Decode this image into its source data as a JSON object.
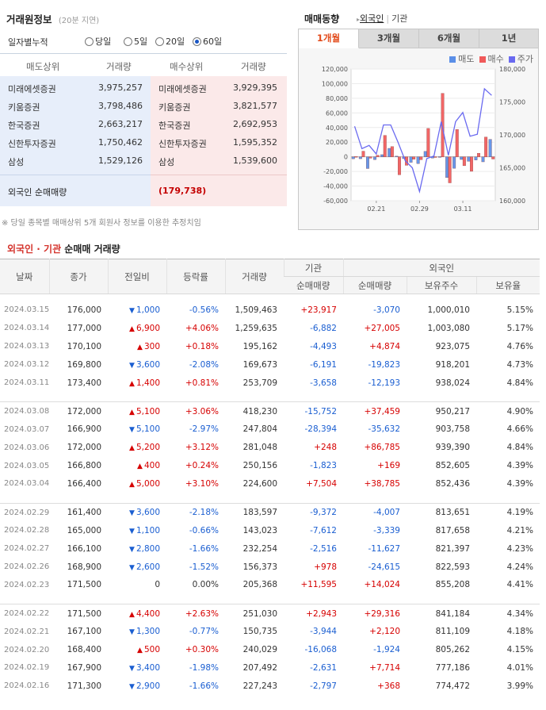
{
  "trading_info": {
    "title": "거래원정보",
    "subtitle": "(20분 지연)",
    "period_label": "일자별누적",
    "period_options": [
      "당일",
      "5일",
      "20일",
      "60일"
    ],
    "period_selected": "60일",
    "sell_header": "매도상위",
    "sell_volume_header": "거래량",
    "buy_header": "매수상위",
    "buy_volume_header": "거래량",
    "brokers": [
      {
        "sell_name": "미래에셋증권",
        "sell_vol": "3,975,257",
        "buy_name": "미래에셋증권",
        "buy_vol": "3,929,395"
      },
      {
        "sell_name": "키움증권",
        "sell_vol": "3,798,486",
        "buy_name": "키움증권",
        "buy_vol": "3,821,577"
      },
      {
        "sell_name": "한국증권",
        "sell_vol": "2,663,217",
        "buy_name": "한국증권",
        "buy_vol": "2,692,953"
      },
      {
        "sell_name": "신한투자증권",
        "sell_vol": "1,750,462",
        "buy_name": "신한투자증권",
        "buy_vol": "1,595,352"
      },
      {
        "sell_name": "삼성",
        "sell_vol": "1,529,126",
        "buy_name": "삼성",
        "buy_vol": "1,539,600"
      }
    ],
    "foreign_net_label": "외국인 순매매량",
    "foreign_net_value": "(179,738)",
    "note": "※ 당일 종목별 매매상위 5개 회원사 정보를 이용한 추정치임"
  },
  "trading_trend": {
    "title": "매매동향",
    "link_foreign": "외국인",
    "link_institution": "기관",
    "tabs": [
      "1개월",
      "3개월",
      "6개월",
      "1년"
    ],
    "active_tab": "1개월",
    "legend": [
      {
        "label": "매도",
        "color": "#5b8fe8"
      },
      {
        "label": "매수",
        "color": "#f05a5a"
      },
      {
        "label": "주가",
        "color": "#6a6af0"
      }
    ]
  },
  "chart_data": {
    "type": "bar",
    "x": [
      "2024.02.16",
      "2024.02.19",
      "2024.02.20",
      "2024.02.21",
      "2024.02.22",
      "2024.02.23",
      "2024.02.26",
      "2024.02.27",
      "2024.02.28",
      "2024.02.29",
      "2024.03.04",
      "2024.03.05",
      "2024.03.06",
      "2024.03.07",
      "2024.03.08",
      "2024.03.11",
      "2024.03.12",
      "2024.03.13",
      "2024.03.14",
      "2024.03.15"
    ],
    "x_tick_labels": [
      "02.21",
      "02.29",
      "03.11"
    ],
    "series": [
      {
        "name": "매수",
        "kind": "bar",
        "axis": "left",
        "values": [
          368,
          7714,
          -1924,
          2120,
          29316,
          14024,
          -24615,
          -11627,
          -3339,
          -4007,
          38785,
          169,
          86785,
          -35632,
          37459,
          -12193,
          -19823,
          4874,
          27005,
          -3070
        ]
      },
      {
        "name": "매도",
        "kind": "bar",
        "axis": "left",
        "values": [
          -2797,
          -2631,
          -16068,
          -3944,
          2943,
          11595,
          978,
          -2516,
          -7612,
          -9372,
          7504,
          -1823,
          248,
          -28394,
          -15752,
          -3658,
          -6191,
          -4493,
          -6882,
          23917
        ]
      },
      {
        "name": "주가",
        "kind": "line",
        "axis": "right",
        "values": [
          171300,
          167900,
          168400,
          167100,
          171500,
          171500,
          168900,
          166100,
          165000,
          161400,
          166400,
          166800,
          172000,
          166900,
          172000,
          173400,
          169800,
          170100,
          177000,
          176000
        ]
      }
    ],
    "ylim_left": [
      -60000,
      120000
    ],
    "yticks_left": [
      "120,000",
      "100,000",
      "80,000",
      "60,000",
      "40,000",
      "20,000",
      "0",
      "-20,000",
      "-40,000",
      "-60,000"
    ],
    "ylim_right": [
      160000,
      180000
    ],
    "yticks_right": [
      "180,000",
      "175,000",
      "170,000",
      "165,000",
      "160,000"
    ]
  },
  "net_table": {
    "title_red": "외국인 · 기관",
    "title_rest": " 순매매 거래량",
    "headers": {
      "date": "날짜",
      "close": "종가",
      "change": "전일비",
      "rate": "등락률",
      "volume": "거래량",
      "institution": "기관",
      "foreign": "외국인",
      "inst_net": "순매매량",
      "for_net": "순매매량",
      "holdings": "보유주수",
      "ratio": "보유율"
    },
    "groups": [
      [
        {
          "date": "2024.03.15",
          "close": "176,000",
          "dir": "down",
          "change": "1,000",
          "rate": "-0.56%",
          "volume": "1,509,463",
          "inst": "+23,917",
          "foreign": "-3,070",
          "hold": "1,000,010",
          "ratio": "5.15%"
        },
        {
          "date": "2024.03.14",
          "close": "177,000",
          "dir": "up",
          "change": "6,900",
          "rate": "+4.06%",
          "volume": "1,259,635",
          "inst": "-6,882",
          "foreign": "+27,005",
          "hold": "1,003,080",
          "ratio": "5.17%"
        },
        {
          "date": "2024.03.13",
          "close": "170,100",
          "dir": "up",
          "change": "300",
          "rate": "+0.18%",
          "volume": "195,162",
          "inst": "-4,493",
          "foreign": "+4,874",
          "hold": "923,075",
          "ratio": "4.76%"
        },
        {
          "date": "2024.03.12",
          "close": "169,800",
          "dir": "down",
          "change": "3,600",
          "rate": "-2.08%",
          "volume": "169,673",
          "inst": "-6,191",
          "foreign": "-19,823",
          "hold": "918,201",
          "ratio": "4.73%"
        },
        {
          "date": "2024.03.11",
          "close": "173,400",
          "dir": "up",
          "change": "1,400",
          "rate": "+0.81%",
          "volume": "253,709",
          "inst": "-3,658",
          "foreign": "-12,193",
          "hold": "938,024",
          "ratio": "4.84%"
        }
      ],
      [
        {
          "date": "2024.03.08",
          "close": "172,000",
          "dir": "up",
          "change": "5,100",
          "rate": "+3.06%",
          "volume": "418,230",
          "inst": "-15,752",
          "foreign": "+37,459",
          "hold": "950,217",
          "ratio": "4.90%"
        },
        {
          "date": "2024.03.07",
          "close": "166,900",
          "dir": "down",
          "change": "5,100",
          "rate": "-2.97%",
          "volume": "247,804",
          "inst": "-28,394",
          "foreign": "-35,632",
          "hold": "903,758",
          "ratio": "4.66%"
        },
        {
          "date": "2024.03.06",
          "close": "172,000",
          "dir": "up",
          "change": "5,200",
          "rate": "+3.12%",
          "volume": "281,048",
          "inst": "+248",
          "foreign": "+86,785",
          "hold": "939,390",
          "ratio": "4.84%"
        },
        {
          "date": "2024.03.05",
          "close": "166,800",
          "dir": "up",
          "change": "400",
          "rate": "+0.24%",
          "volume": "250,156",
          "inst": "-1,823",
          "foreign": "+169",
          "hold": "852,605",
          "ratio": "4.39%"
        },
        {
          "date": "2024.03.04",
          "close": "166,400",
          "dir": "up",
          "change": "5,000",
          "rate": "+3.10%",
          "volume": "224,600",
          "inst": "+7,504",
          "foreign": "+38,785",
          "hold": "852,436",
          "ratio": "4.39%"
        }
      ],
      [
        {
          "date": "2024.02.29",
          "close": "161,400",
          "dir": "down",
          "change": "3,600",
          "rate": "-2.18%",
          "volume": "183,597",
          "inst": "-9,372",
          "foreign": "-4,007",
          "hold": "813,651",
          "ratio": "4.19%"
        },
        {
          "date": "2024.02.28",
          "close": "165,000",
          "dir": "down",
          "change": "1,100",
          "rate": "-0.66%",
          "volume": "143,023",
          "inst": "-7,612",
          "foreign": "-3,339",
          "hold": "817,658",
          "ratio": "4.21%"
        },
        {
          "date": "2024.02.27",
          "close": "166,100",
          "dir": "down",
          "change": "2,800",
          "rate": "-1.66%",
          "volume": "232,254",
          "inst": "-2,516",
          "foreign": "-11,627",
          "hold": "821,397",
          "ratio": "4.23%"
        },
        {
          "date": "2024.02.26",
          "close": "168,900",
          "dir": "down",
          "change": "2,600",
          "rate": "-1.52%",
          "volume": "156,373",
          "inst": "+978",
          "foreign": "-24,615",
          "hold": "822,593",
          "ratio": "4.24%"
        },
        {
          "date": "2024.02.23",
          "close": "171,500",
          "dir": "none",
          "change": "0",
          "rate": "0.00%",
          "volume": "205,368",
          "inst": "+11,595",
          "foreign": "+14,024",
          "hold": "855,208",
          "ratio": "4.41%"
        }
      ],
      [
        {
          "date": "2024.02.22",
          "close": "171,500",
          "dir": "up",
          "change": "4,400",
          "rate": "+2.63%",
          "volume": "251,030",
          "inst": "+2,943",
          "foreign": "+29,316",
          "hold": "841,184",
          "ratio": "4.34%"
        },
        {
          "date": "2024.02.21",
          "close": "167,100",
          "dir": "down",
          "change": "1,300",
          "rate": "-0.77%",
          "volume": "150,735",
          "inst": "-3,944",
          "foreign": "+2,120",
          "hold": "811,109",
          "ratio": "4.18%"
        },
        {
          "date": "2024.02.20",
          "close": "168,400",
          "dir": "up",
          "change": "500",
          "rate": "+0.30%",
          "volume": "240,029",
          "inst": "-16,068",
          "foreign": "-1,924",
          "hold": "805,262",
          "ratio": "4.15%"
        },
        {
          "date": "2024.02.19",
          "close": "167,900",
          "dir": "down",
          "change": "3,400",
          "rate": "-1.98%",
          "volume": "207,492",
          "inst": "-2,631",
          "foreign": "+7,714",
          "hold": "777,186",
          "ratio": "4.01%"
        },
        {
          "date": "2024.02.16",
          "close": "171,300",
          "dir": "down",
          "change": "2,900",
          "rate": "-1.66%",
          "volume": "227,243",
          "inst": "-2,797",
          "foreign": "+368",
          "hold": "774,472",
          "ratio": "3.99%"
        }
      ]
    ]
  }
}
